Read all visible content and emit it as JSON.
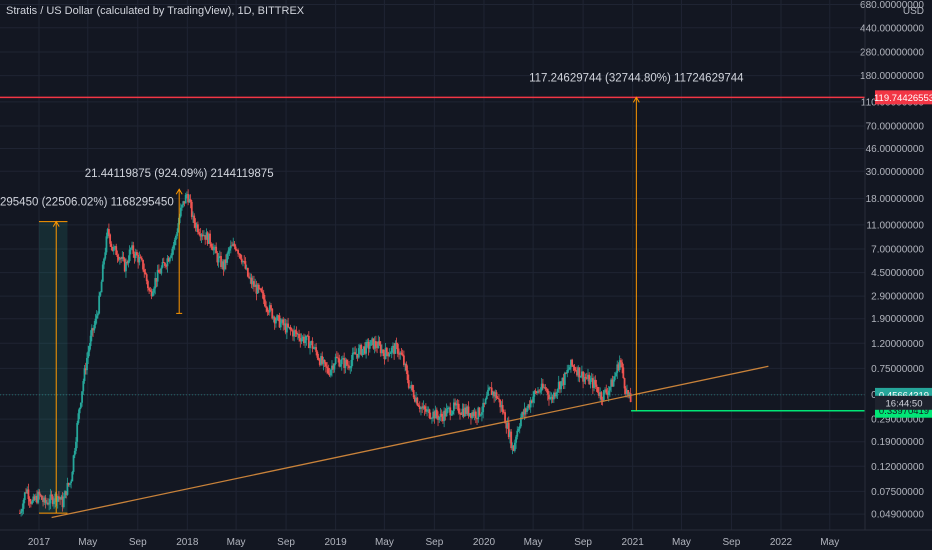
{
  "header": {
    "title": "Stratis / US Dollar (calculated by TradingView), 1D, BITTREX"
  },
  "chart_data": {
    "type": "line",
    "title": "Stratis / US Dollar (calculated by TradingView), 1D, BITTREX",
    "yscale": "log",
    "currency_label": "USD",
    "ylim": [
      0.04,
      700
    ],
    "x_tick_labels": [
      "2017",
      "May",
      "Sep",
      "2018",
      "May",
      "Sep",
      "2019",
      "May",
      "Sep",
      "2020",
      "May",
      "Sep",
      "2021",
      "May",
      "Sep",
      "2022",
      "May"
    ],
    "y_tick_labels": [
      "680.00000000",
      "440.00000000",
      "280.00000000",
      "180.00000000",
      "110.00000000",
      "70.00000000",
      "46.00000000",
      "30.00000000",
      "18.00000000",
      "11.00000000",
      "7.00000000",
      "4.50000000",
      "2.90000000",
      "1.90000000",
      "1.20000000",
      "0.75000000",
      "0.46000000",
      "0.29000000",
      "0.19000000",
      "0.12000000",
      "0.07500000",
      "0.04900000"
    ],
    "y_ticks": [
      680,
      440,
      280,
      180,
      110,
      70,
      46,
      30,
      18,
      11,
      7,
      4.5,
      2.9,
      1.9,
      1.2,
      0.75,
      0.46,
      0.29,
      0.19,
      0.12,
      0.075,
      0.049
    ],
    "series": [
      {
        "x": [
          "2016-11-15",
          "2016-12-01",
          "2016-12-15",
          "2017-01-01",
          "2017-01-15",
          "2017-02-01",
          "2017-02-15",
          "2017-03-01",
          "2017-03-10",
          "2017-03-20",
          "2017-04-01",
          "2017-04-10",
          "2017-04-20",
          "2017-05-01",
          "2017-05-10",
          "2017-05-20",
          "2017-06-01",
          "2017-06-10",
          "2017-06-20",
          "2017-07-01",
          "2017-07-15",
          "2017-08-01",
          "2017-08-15",
          "2017-09-01",
          "2017-09-15",
          "2017-10-01",
          "2017-10-15",
          "2017-11-01",
          "2017-11-15",
          "2017-12-01",
          "2017-12-15",
          "2018-01-01",
          "2018-01-08",
          "2018-01-15",
          "2018-02-01",
          "2018-02-15",
          "2018-03-01",
          "2018-03-15",
          "2018-04-01",
          "2018-04-15",
          "2018-05-01",
          "2018-05-15",
          "2018-06-01",
          "2018-06-15",
          "2018-07-01",
          "2018-07-15",
          "2018-08-01",
          "2018-08-15",
          "2018-09-01",
          "2018-09-15",
          "2018-10-01",
          "2018-10-15",
          "2018-11-01",
          "2018-11-15",
          "2018-12-01",
          "2018-12-15",
          "2019-01-01",
          "2019-01-15",
          "2019-02-01",
          "2019-02-15",
          "2019-03-01",
          "2019-03-15",
          "2019-04-01",
          "2019-04-15",
          "2019-05-01",
          "2019-05-15",
          "2019-06-01",
          "2019-06-15",
          "2019-07-01",
          "2019-07-15",
          "2019-08-01",
          "2019-08-15",
          "2019-09-01",
          "2019-09-15",
          "2019-10-01",
          "2019-10-15",
          "2019-11-01",
          "2019-11-15",
          "2019-12-01",
          "2019-12-15",
          "2020-01-01",
          "2020-01-15",
          "2020-02-01",
          "2020-02-15",
          "2020-03-01",
          "2020-03-13",
          "2020-03-20",
          "2020-04-01",
          "2020-04-15",
          "2020-05-01",
          "2020-05-15",
          "2020-06-01",
          "2020-06-15",
          "2020-07-01",
          "2020-07-15",
          "2020-08-01",
          "2020-08-15",
          "2020-09-01",
          "2020-09-15",
          "2020-10-01",
          "2020-10-15",
          "2020-11-01",
          "2020-11-15",
          "2020-12-01",
          "2020-12-10",
          "2020-12-20",
          "2020-12-28"
        ],
        "y": [
          0.05,
          0.08,
          0.06,
          0.07,
          0.06,
          0.065,
          0.07,
          0.06,
          0.08,
          0.09,
          0.2,
          0.35,
          0.6,
          1.0,
          1.4,
          1.8,
          3.0,
          6.0,
          10.0,
          7.0,
          6.5,
          5.0,
          7.0,
          6.0,
          5.0,
          3.0,
          4.0,
          5.0,
          6.0,
          8.0,
          14.0,
          20.0,
          16.0,
          12.0,
          10.0,
          9.0,
          8.0,
          6.0,
          5.0,
          7.0,
          7.5,
          6.0,
          4.0,
          3.5,
          3.0,
          2.5,
          2.0,
          1.8,
          1.6,
          1.5,
          1.4,
          1.3,
          1.2,
          1.0,
          0.8,
          0.7,
          0.9,
          0.85,
          0.8,
          0.95,
          1.05,
          1.1,
          1.2,
          1.15,
          1.0,
          1.05,
          1.1,
          0.9,
          0.55,
          0.45,
          0.35,
          0.33,
          0.32,
          0.3,
          0.33,
          0.36,
          0.35,
          0.34,
          0.33,
          0.32,
          0.36,
          0.5,
          0.45,
          0.35,
          0.24,
          0.16,
          0.22,
          0.3,
          0.35,
          0.45,
          0.5,
          0.52,
          0.42,
          0.55,
          0.6,
          0.8,
          0.75,
          0.65,
          0.6,
          0.55,
          0.45,
          0.5,
          0.6,
          0.9,
          0.6,
          0.45,
          0.4
        ]
      }
    ],
    "annotations": [
      {
        "label": "295450 (22506.02%) 1168295450",
        "from": 0.05,
        "to": 11.7
      },
      {
        "label": "21.44119875 (924.09%) 2144119875",
        "from": 2.1,
        "to": 21.44
      },
      {
        "label": "117.24629744 (32744.80%) 11724629744",
        "from": 0.34,
        "to": 119.74
      }
    ],
    "price_lines": [
      {
        "label": "119.74426553",
        "value": 119.74426553,
        "color": "#f23645"
      },
      {
        "label": "0.45664319",
        "value": 0.45664319,
        "color": "#26a69a"
      },
      {
        "label": "0.33970419",
        "value": 0.33970419,
        "color": "#00e676"
      }
    ],
    "countdown": "16:44:50",
    "trendline": {
      "from_date": "2017-02-01",
      "from_value": 0.046,
      "to_date": "2021-12-01",
      "to_value": 0.78
    },
    "colors": {
      "up": "#26a69a",
      "down": "#ef5350",
      "background": "#131722",
      "annotation": "#ff9800",
      "trendline": "#c8823a"
    }
  }
}
